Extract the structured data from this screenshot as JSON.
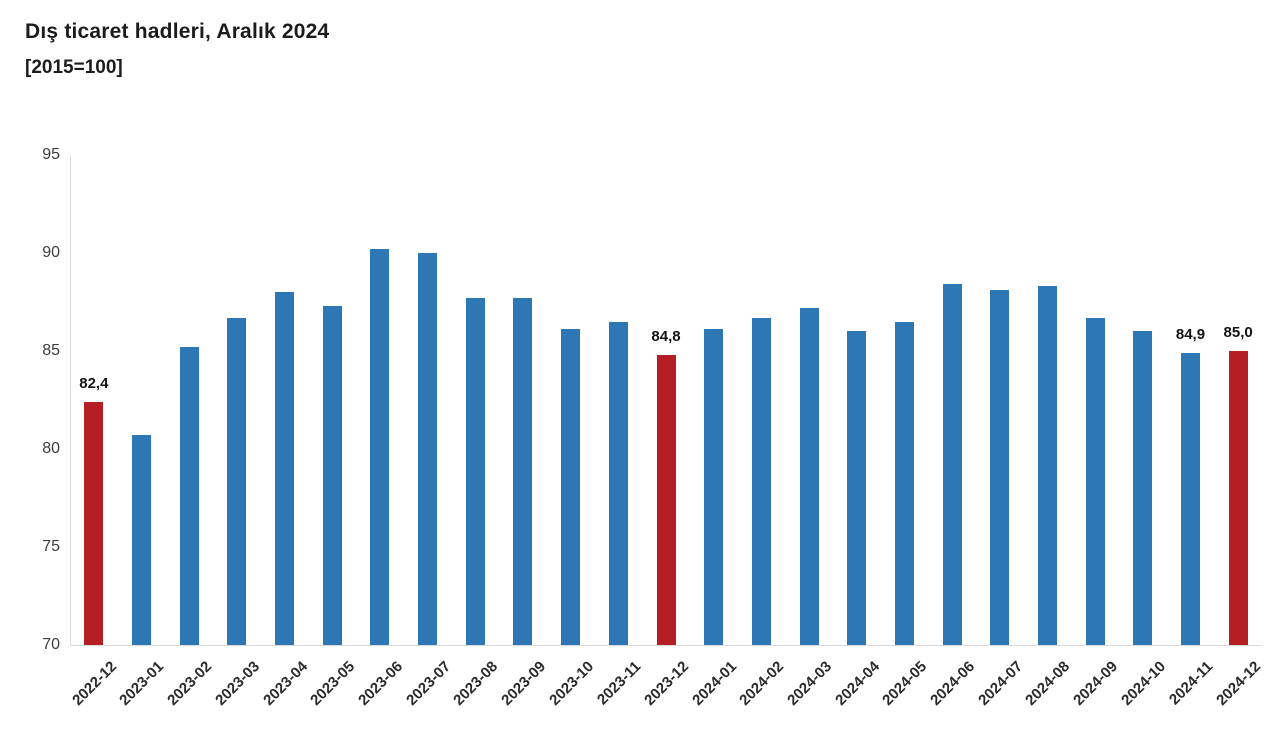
{
  "title": "Dış ticaret hadleri, Aralık 2024",
  "subtitle": "[2015=100]",
  "colors": {
    "bar_default": "#2E77B5",
    "bar_highlight": "#B51F24",
    "axis_line": "#d9d9d9",
    "tick_text": "#3d3d3d",
    "data_label_text": "#141414"
  },
  "chart_data": {
    "type": "bar",
    "title": "Dış ticaret hadleri, Aralık 2024",
    "subtitle": "[2015=100]",
    "xlabel": "",
    "ylabel": "",
    "ylim": [
      70,
      95
    ],
    "yticks": [
      95,
      90,
      85,
      80,
      75,
      70
    ],
    "grid": false,
    "legend": false,
    "categories": [
      "2022-12",
      "2023-01",
      "2023-02",
      "2023-03",
      "2023-04",
      "2023-05",
      "2023-06",
      "2023-07",
      "2023-08",
      "2023-09",
      "2023-10",
      "2023-11",
      "2023-12",
      "2024-01",
      "2024-02",
      "2024-03",
      "2024-04",
      "2024-05",
      "2024-06",
      "2024-07",
      "2024-08",
      "2024-09",
      "2024-10",
      "2024-11",
      "2024-12"
    ],
    "values": [
      82.4,
      80.7,
      85.2,
      86.7,
      88.0,
      87.3,
      90.2,
      90.0,
      87.7,
      87.7,
      86.1,
      86.5,
      84.8,
      86.1,
      86.7,
      87.2,
      86.0,
      86.5,
      88.4,
      88.1,
      88.3,
      86.7,
      86.0,
      84.9,
      85.0
    ],
    "highlight_indices": [
      0,
      12,
      24
    ],
    "data_labels": [
      {
        "index": 0,
        "text": "82,4"
      },
      {
        "index": 12,
        "text": "84,8"
      },
      {
        "index": 23,
        "text": "84,9"
      },
      {
        "index": 24,
        "text": "85,0"
      }
    ]
  }
}
